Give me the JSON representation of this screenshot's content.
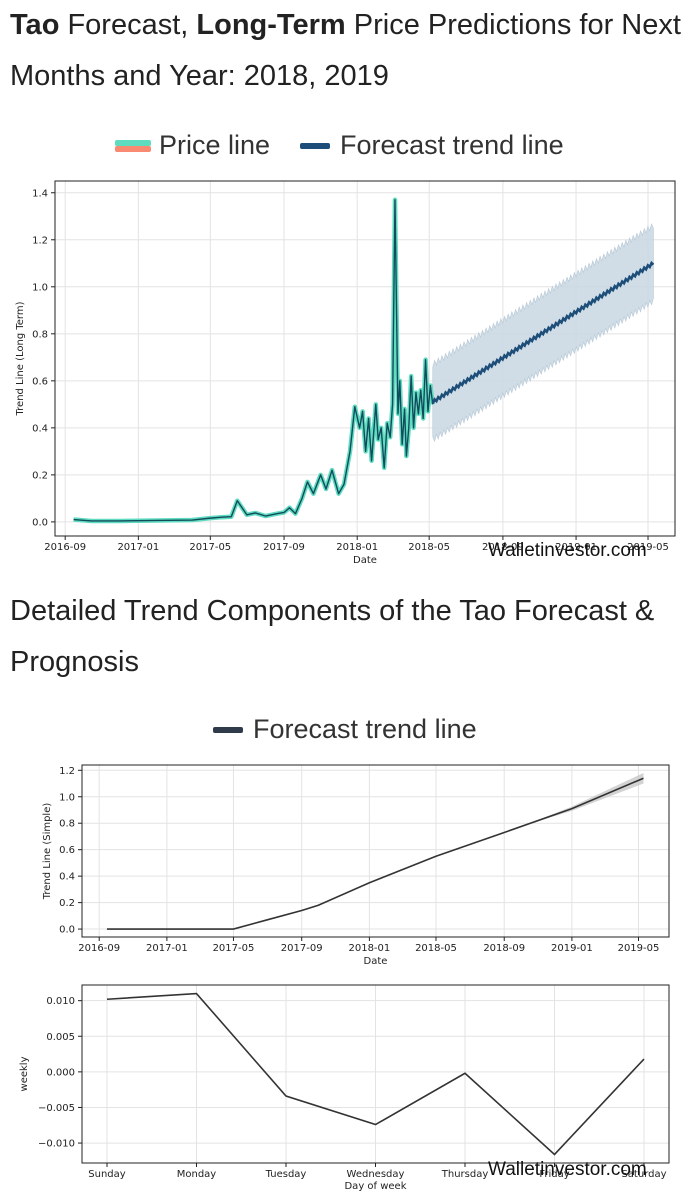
{
  "headings": {
    "top": {
      "bold1": "Tao",
      "t1": " Forecast, ",
      "bold2": "Long-Term",
      "t2": " Price Predictions for Next Months and Year: 2018, 2019"
    },
    "middle": "Detailed Trend Components of the Tao Forecast & Prognosis"
  },
  "watermark": "Walletinvestor.com",
  "colors": {
    "price": "#5fdcc0",
    "price_alt": "#f98a72",
    "forecast": "#1d4e79",
    "band": "#c9d7e2",
    "trend": "#333333"
  },
  "chart_data": [
    {
      "type": "line",
      "legend": [
        "Price line",
        "Forecast trend line"
      ],
      "xlabel": "Date",
      "ylabel": "Trend Line (Long Term)",
      "x_ticks": [
        "2016-09",
        "2017-01",
        "2017-05",
        "2017-09",
        "2018-01",
        "2018-05",
        "2018-09",
        "2019-01",
        "2019-05"
      ],
      "y_ticks": [
        "0.0",
        "0.2",
        "0.4",
        "0.6",
        "0.8",
        "1.0",
        "1.2",
        "1.4"
      ],
      "ylim": [
        -0.06,
        1.45
      ],
      "grid": true,
      "series": [
        {
          "name": "Price line",
          "points": [
            [
              "2016-09-15",
              0.01
            ],
            [
              "2016-10-15",
              0.004
            ],
            [
              "2016-12-01",
              0.004
            ],
            [
              "2017-02-01",
              0.006
            ],
            [
              "2017-04-01",
              0.008
            ],
            [
              "2017-05-01",
              0.016
            ],
            [
              "2017-05-20",
              0.02
            ],
            [
              "2017-06-05",
              0.022
            ],
            [
              "2017-06-15",
              0.09
            ],
            [
              "2017-07-01",
              0.03
            ],
            [
              "2017-07-15",
              0.038
            ],
            [
              "2017-08-01",
              0.025
            ],
            [
              "2017-08-20",
              0.035
            ],
            [
              "2017-09-01",
              0.04
            ],
            [
              "2017-09-10",
              0.06
            ],
            [
              "2017-09-20",
              0.035
            ],
            [
              "2017-10-01",
              0.1
            ],
            [
              "2017-10-10",
              0.17
            ],
            [
              "2017-10-20",
              0.12
            ],
            [
              "2017-11-01",
              0.2
            ],
            [
              "2017-11-10",
              0.14
            ],
            [
              "2017-11-20",
              0.22
            ],
            [
              "2017-12-01",
              0.12
            ],
            [
              "2017-12-10",
              0.16
            ],
            [
              "2017-12-20",
              0.3
            ],
            [
              "2017-12-28",
              0.49
            ],
            [
              "2018-01-05",
              0.4
            ],
            [
              "2018-01-10",
              0.47
            ],
            [
              "2018-01-15",
              0.3
            ],
            [
              "2018-01-20",
              0.44
            ],
            [
              "2018-01-25",
              0.26
            ],
            [
              "2018-02-01",
              0.5
            ],
            [
              "2018-02-05",
              0.35
            ],
            [
              "2018-02-10",
              0.4
            ],
            [
              "2018-02-15",
              0.23
            ],
            [
              "2018-02-20",
              0.42
            ],
            [
              "2018-02-25",
              0.36
            ],
            [
              "2018-03-01",
              0.5
            ],
            [
              "2018-03-05",
              1.37
            ],
            [
              "2018-03-10",
              0.46
            ],
            [
              "2018-03-13",
              0.6
            ],
            [
              "2018-03-17",
              0.33
            ],
            [
              "2018-03-21",
              0.48
            ],
            [
              "2018-03-24",
              0.28
            ],
            [
              "2018-03-28",
              0.4
            ],
            [
              "2018-04-01",
              0.62
            ],
            [
              "2018-04-05",
              0.4
            ],
            [
              "2018-04-09",
              0.55
            ],
            [
              "2018-04-13",
              0.46
            ],
            [
              "2018-04-17",
              0.56
            ],
            [
              "2018-04-21",
              0.44
            ],
            [
              "2018-04-25",
              0.69
            ],
            [
              "2018-04-29",
              0.47
            ],
            [
              "2018-05-03",
              0.58
            ],
            [
              "2018-05-07",
              0.5
            ]
          ]
        },
        {
          "name": "Forecast trend line",
          "start": [
            "2018-05-07",
            0.51
          ],
          "end": [
            "2019-05-10",
            1.1
          ],
          "band_half_width": [
            0.16,
            0.16
          ]
        }
      ]
    },
    {
      "type": "line",
      "legend": [
        "Forecast trend line"
      ],
      "xlabel": "Date",
      "ylabel": "Trend Line (Simple)",
      "x_ticks": [
        "2016-09",
        "2017-01",
        "2017-05",
        "2017-09",
        "2018-01",
        "2018-05",
        "2018-09",
        "2019-01",
        "2019-05"
      ],
      "y_ticks": [
        "0.0",
        "0.2",
        "0.4",
        "0.6",
        "0.8",
        "1.0",
        "1.2"
      ],
      "ylim": [
        -0.06,
        1.24
      ],
      "grid": true,
      "series": [
        {
          "name": "Forecast trend line",
          "points": [
            [
              "2016-09-15",
              0.0
            ],
            [
              "2017-01-01",
              0.0
            ],
            [
              "2017-04-01",
              0.0
            ],
            [
              "2017-05-01",
              0.0
            ],
            [
              "2017-07-01",
              0.07
            ],
            [
              "2017-09-01",
              0.14
            ],
            [
              "2017-10-01",
              0.18
            ],
            [
              "2018-01-01",
              0.35
            ],
            [
              "2018-05-01",
              0.55
            ],
            [
              "2018-09-01",
              0.73
            ],
            [
              "2019-01-01",
              0.91
            ],
            [
              "2019-05-10",
              1.14
            ]
          ],
          "band": [
            [
              "2018-05-07",
              0.0
            ],
            [
              "2018-11-01",
              0.005
            ],
            [
              "2019-05-10",
              0.04
            ]
          ]
        }
      ]
    },
    {
      "type": "line",
      "xlabel": "Day of week",
      "ylabel": "weekly",
      "categories": [
        "Sunday",
        "Monday",
        "Tuesday",
        "Wednesday",
        "Thursday",
        "Friday",
        "Saturday"
      ],
      "values": [
        0.0102,
        0.011,
        -0.0034,
        -0.0074,
        -0.0002,
        -0.0116,
        0.0018
      ],
      "y_ticks": [
        "−0.010",
        "−0.005",
        "0.000",
        "0.005",
        "0.010"
      ],
      "ylim": [
        -0.0128,
        0.0122
      ],
      "grid": true
    }
  ]
}
